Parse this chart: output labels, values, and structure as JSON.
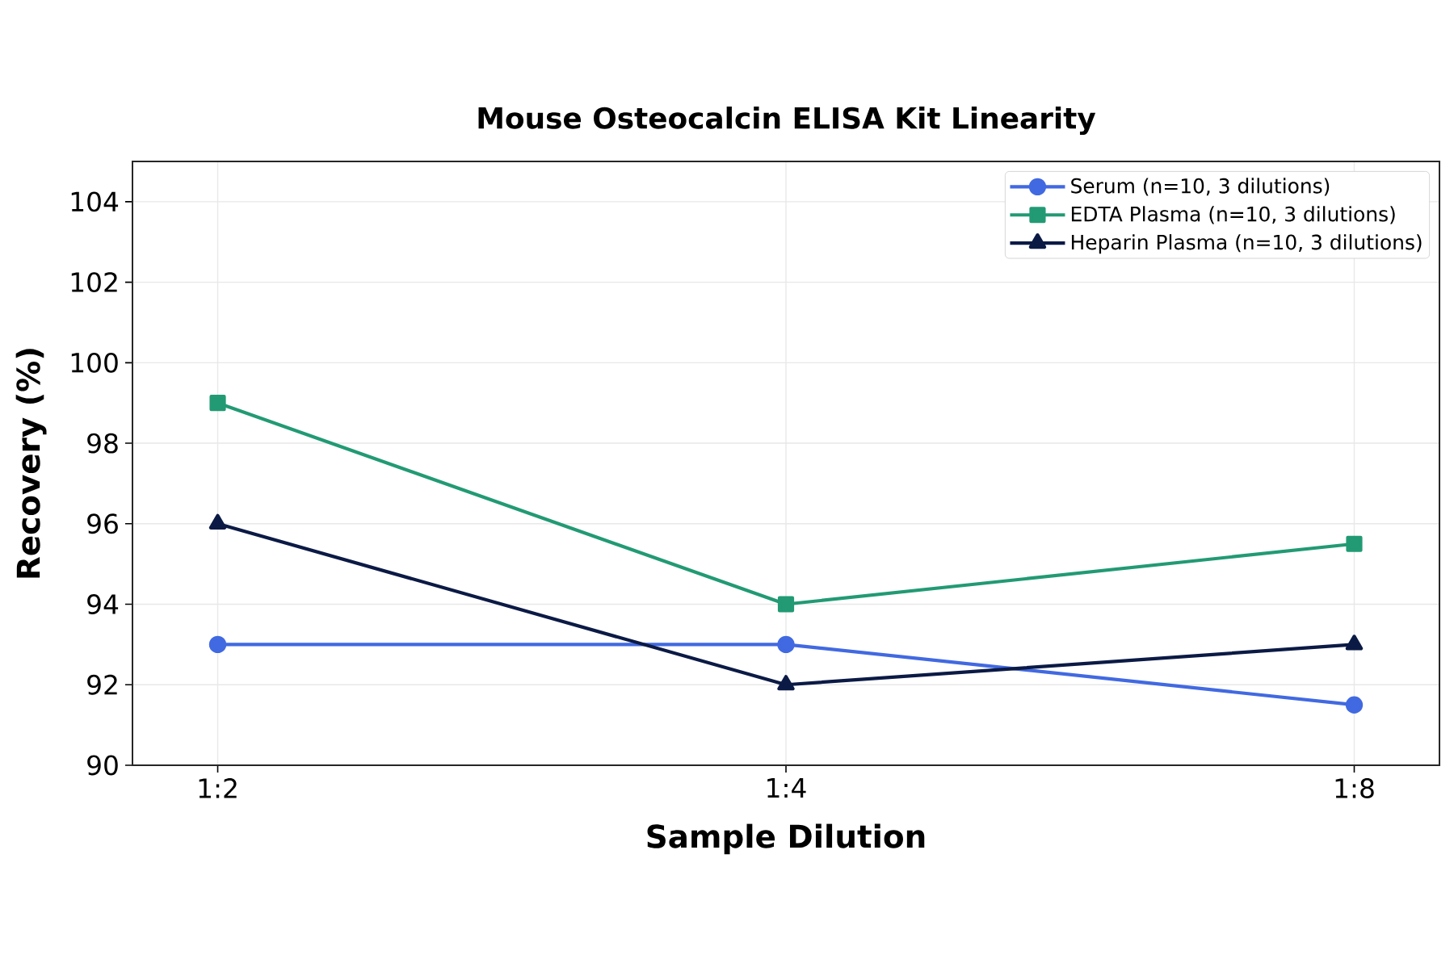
{
  "chart_data": {
    "type": "line",
    "title": "Mouse Osteocalcin ELISA Kit Linearity",
    "xlabel": "Sample Dilution",
    "ylabel": "Recovery (%)",
    "categories": [
      "1:2",
      "1:4",
      "1:8"
    ],
    "series": [
      {
        "name": "Serum (n=10, 3 dilutions)",
        "color": "#4169e1",
        "marker": "circle",
        "values": [
          93,
          93,
          91.5
        ]
      },
      {
        "name": "EDTA Plasma (n=10, 3 dilutions)",
        "color": "#229a74",
        "marker": "square",
        "values": [
          99,
          94,
          95.5
        ]
      },
      {
        "name": "Heparin Plasma (n=10, 3 dilutions)",
        "color": "#0b1a45",
        "marker": "triangle",
        "values": [
          96,
          92,
          93
        ]
      }
    ],
    "ylim": [
      90,
      105
    ],
    "yticks": [
      90,
      92,
      94,
      96,
      98,
      100,
      102,
      104
    ],
    "grid": true,
    "legend": "top right",
    "line_style": "solid"
  }
}
